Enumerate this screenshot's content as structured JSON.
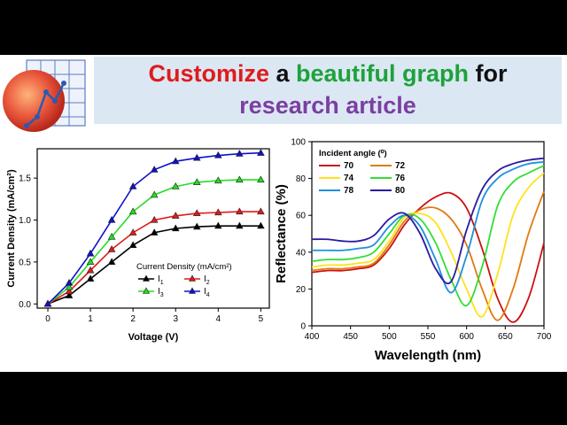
{
  "banner": {
    "word1": "Customize",
    "word2": " a ",
    "word3": "beautiful graph",
    "word4": " for",
    "line2": "research article",
    "colors": {
      "word1": "#e01b1b",
      "word3": "#1ea23a",
      "line2": "#7a3fa0",
      "plain": "#111111"
    }
  },
  "logo_icon": "chart-app-icon",
  "chart_data": [
    {
      "type": "line",
      "xlabel": "Voltage (V)",
      "ylabel": "Current Density (mA/cm²)",
      "xlim": [
        -0.25,
        5.2
      ],
      "ylim": [
        -0.05,
        1.85
      ],
      "xticks": [
        "0",
        "1",
        "2",
        "3",
        "4",
        "5"
      ],
      "yticks": [
        "0.0",
        "0.5",
        "1.0",
        "1.5"
      ],
      "legend_title": "Current Density (mA/cm²)",
      "legend_position": "bottom-right",
      "x": [
        0,
        0.5,
        1,
        1.5,
        2,
        2.5,
        3,
        3.5,
        4,
        4.5,
        5
      ],
      "series": [
        {
          "name": "I1",
          "label_main": "I",
          "label_sub": "1",
          "color": "#000000",
          "values": [
            0,
            0.1,
            0.3,
            0.5,
            0.7,
            0.85,
            0.9,
            0.92,
            0.93,
            0.93,
            0.93
          ]
        },
        {
          "name": "I2",
          "label_main": "I",
          "label_sub": "2",
          "color": "#e01b1b",
          "values": [
            0,
            0.15,
            0.4,
            0.65,
            0.85,
            1.0,
            1.05,
            1.08,
            1.09,
            1.1,
            1.1
          ]
        },
        {
          "name": "I3",
          "label_main": "I",
          "label_sub": "3",
          "color": "#22dd22",
          "values": [
            0,
            0.2,
            0.5,
            0.8,
            1.1,
            1.3,
            1.4,
            1.45,
            1.47,
            1.48,
            1.48
          ]
        },
        {
          "name": "I4",
          "label_main": "I",
          "label_sub": "4",
          "color": "#1010cc",
          "values": [
            0,
            0.25,
            0.6,
            1.0,
            1.4,
            1.6,
            1.7,
            1.74,
            1.77,
            1.79,
            1.8
          ]
        }
      ]
    },
    {
      "type": "line",
      "xlabel": "Wavelength (nm)",
      "ylabel": "Reflectance (%)",
      "xlim": [
        400,
        700
      ],
      "ylim": [
        0,
        100
      ],
      "xticks": [
        "400",
        "450",
        "500",
        "550",
        "600",
        "650",
        "700"
      ],
      "yticks": [
        "0",
        "20",
        "40",
        "60",
        "80",
        "100"
      ],
      "legend_title": "Incident angle (⁰)",
      "legend_position": "top-left",
      "x": [
        400,
        420,
        440,
        460,
        480,
        500,
        520,
        540,
        560,
        580,
        600,
        620,
        640,
        660,
        680,
        700
      ],
      "series": [
        {
          "name": "70",
          "color": "#cc1111",
          "values": [
            29,
            30,
            30,
            31,
            33,
            42,
            55,
            64,
            70,
            72,
            64,
            42,
            15,
            2,
            15,
            45
          ]
        },
        {
          "name": "72",
          "color": "#e07a10",
          "values": [
            30,
            31,
            31,
            32,
            34,
            44,
            57,
            63,
            64,
            58,
            44,
            20,
            3,
            20,
            50,
            73
          ]
        },
        {
          "name": "74",
          "color": "#ffe21a",
          "values": [
            32,
            33,
            33,
            34,
            36,
            46,
            59,
            61,
            56,
            40,
            20,
            5,
            28,
            60,
            75,
            83
          ]
        },
        {
          "name": "76",
          "color": "#33dd33",
          "values": [
            35,
            36,
            36,
            37,
            40,
            50,
            60,
            58,
            45,
            25,
            11,
            32,
            65,
            78,
            83,
            87
          ]
        },
        {
          "name": "78",
          "color": "#1e90e0",
          "values": [
            41,
            41,
            41,
            42,
            44,
            54,
            60,
            54,
            36,
            18,
            38,
            68,
            80,
            85,
            88,
            89
          ]
        },
        {
          "name": "80",
          "color": "#2a1aa0",
          "values": [
            47,
            47,
            46,
            46,
            49,
            58,
            61,
            50,
            31,
            24,
            52,
            74,
            84,
            88,
            90,
            91
          ]
        }
      ]
    }
  ]
}
